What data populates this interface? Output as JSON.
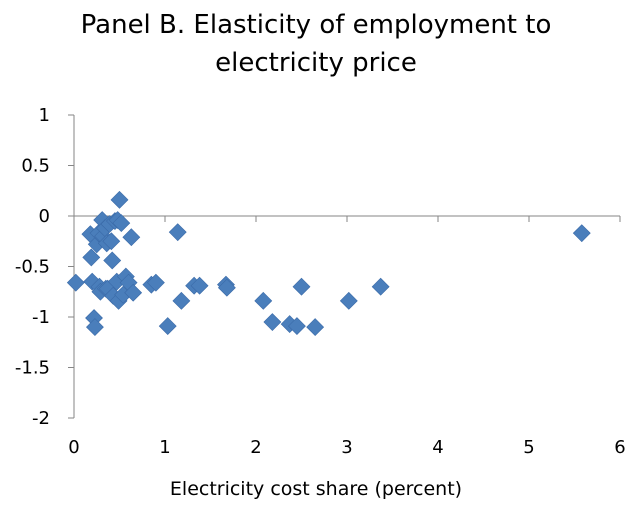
{
  "chart_data": {
    "type": "scatter",
    "title_lines": [
      "Panel B. Elasticity of employment to",
      "electricity price"
    ],
    "xlabel": "Electricity cost share (percent)",
    "ylabel": "",
    "xlim": [
      0,
      6
    ],
    "ylim": [
      -2,
      1
    ],
    "x_ticks": [
      "0",
      "1",
      "2",
      "3",
      "4",
      "5",
      "6"
    ],
    "y_ticks": [
      "1",
      "0.5",
      "0",
      "-0.5",
      "-1",
      "-1.5",
      "-2"
    ],
    "grid": false,
    "legend": "none",
    "marker": "diamond",
    "marker_color": "#4a7ebb",
    "points": [
      {
        "x": 0.02,
        "y": -0.66
      },
      {
        "x": 0.18,
        "y": -0.18
      },
      {
        "x": 0.19,
        "y": -0.41
      },
      {
        "x": 0.2,
        "y": -0.65
      },
      {
        "x": 0.22,
        "y": -1.01
      },
      {
        "x": 0.23,
        "y": -1.1
      },
      {
        "x": 0.25,
        "y": -0.28
      },
      {
        "x": 0.27,
        "y": -0.17
      },
      {
        "x": 0.28,
        "y": -0.7
      },
      {
        "x": 0.29,
        "y": -0.75
      },
      {
        "x": 0.31,
        "y": -0.04
      },
      {
        "x": 0.32,
        "y": -0.2
      },
      {
        "x": 0.34,
        "y": -0.12
      },
      {
        "x": 0.35,
        "y": -0.72
      },
      {
        "x": 0.36,
        "y": -0.27
      },
      {
        "x": 0.37,
        "y": -0.72
      },
      {
        "x": 0.39,
        "y": -0.08
      },
      {
        "x": 0.41,
        "y": -0.25
      },
      {
        "x": 0.42,
        "y": -0.44
      },
      {
        "x": 0.43,
        "y": -0.79
      },
      {
        "x": 0.45,
        "y": -0.05
      },
      {
        "x": 0.47,
        "y": -0.65
      },
      {
        "x": 0.48,
        "y": -0.04
      },
      {
        "x": 0.49,
        "y": -0.84
      },
      {
        "x": 0.5,
        "y": 0.16
      },
      {
        "x": 0.52,
        "y": -0.07
      },
      {
        "x": 0.54,
        "y": -0.78
      },
      {
        "x": 0.57,
        "y": -0.6
      },
      {
        "x": 0.6,
        "y": -0.66
      },
      {
        "x": 0.63,
        "y": -0.21
      },
      {
        "x": 0.65,
        "y": -0.76
      },
      {
        "x": 0.85,
        "y": -0.68
      },
      {
        "x": 0.9,
        "y": -0.66
      },
      {
        "x": 1.03,
        "y": -1.09
      },
      {
        "x": 1.14,
        "y": -0.16
      },
      {
        "x": 1.18,
        "y": -0.84
      },
      {
        "x": 1.32,
        "y": -0.69
      },
      {
        "x": 1.38,
        "y": -0.69
      },
      {
        "x": 1.67,
        "y": -0.68
      },
      {
        "x": 1.68,
        "y": -0.71
      },
      {
        "x": 2.08,
        "y": -0.84
      },
      {
        "x": 2.18,
        "y": -1.05
      },
      {
        "x": 2.37,
        "y": -1.07
      },
      {
        "x": 2.45,
        "y": -1.09
      },
      {
        "x": 2.5,
        "y": -0.7
      },
      {
        "x": 2.65,
        "y": -1.1
      },
      {
        "x": 3.02,
        "y": -0.84
      },
      {
        "x": 3.37,
        "y": -0.7
      },
      {
        "x": 5.58,
        "y": -0.17
      }
    ]
  }
}
